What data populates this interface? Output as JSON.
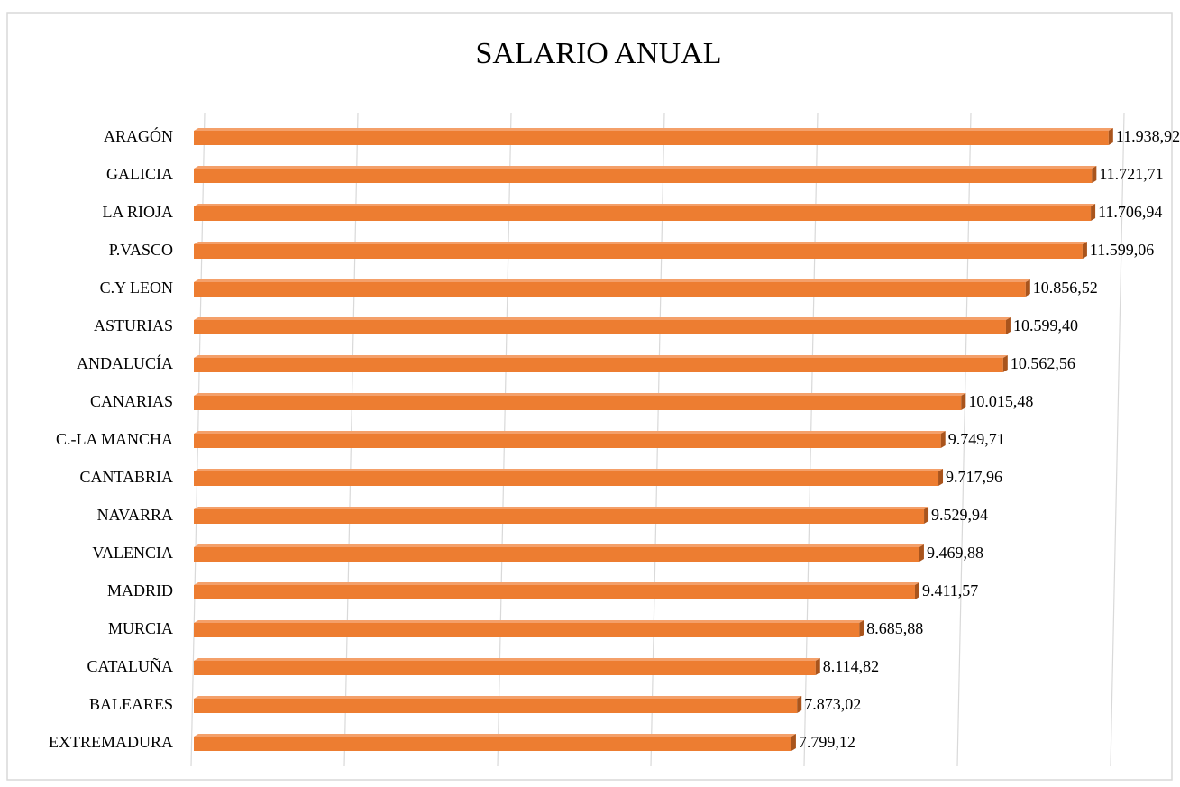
{
  "chart_data": {
    "type": "bar",
    "orientation": "horizontal",
    "title": "SALARIO ANUAL",
    "categories": [
      "ARAGÓN",
      "GALICIA",
      "LA RIOJA",
      "P.VASCO",
      "C.Y LEON",
      "ASTURIAS",
      "ANDALUCÍA",
      "CANARIAS",
      "C.-LA MANCHA",
      "CANTABRIA",
      "NAVARRA",
      "VALENCIA",
      "MADRID",
      "MURCIA",
      "CATALUÑA",
      "BALEARES",
      "EXTREMADURA"
    ],
    "values": [
      11938.92,
      11721.71,
      11706.94,
      11599.06,
      10856.52,
      10599.4,
      10562.56,
      10015.48,
      9749.71,
      9717.96,
      9529.94,
      9469.88,
      9411.57,
      8685.88,
      8114.82,
      7873.02,
      7799.12
    ],
    "value_labels": [
      "11.938,92",
      "11.721,71",
      "11.706,94",
      "11.599,06",
      "10.856,52",
      "10.599,40",
      "10.562,56",
      "10.015,48",
      "9.749,71",
      "9.717,96",
      "9.529,94",
      "9.469,88",
      "9.411,57",
      "8.685,88",
      "8.114,82",
      "7.873,02",
      "7.799,12"
    ],
    "color": "#ed7d31",
    "xlim": [
      0,
      12000
    ],
    "xticks": [
      0,
      2000,
      4000,
      6000,
      8000,
      10000,
      12000
    ],
    "grid": true
  }
}
